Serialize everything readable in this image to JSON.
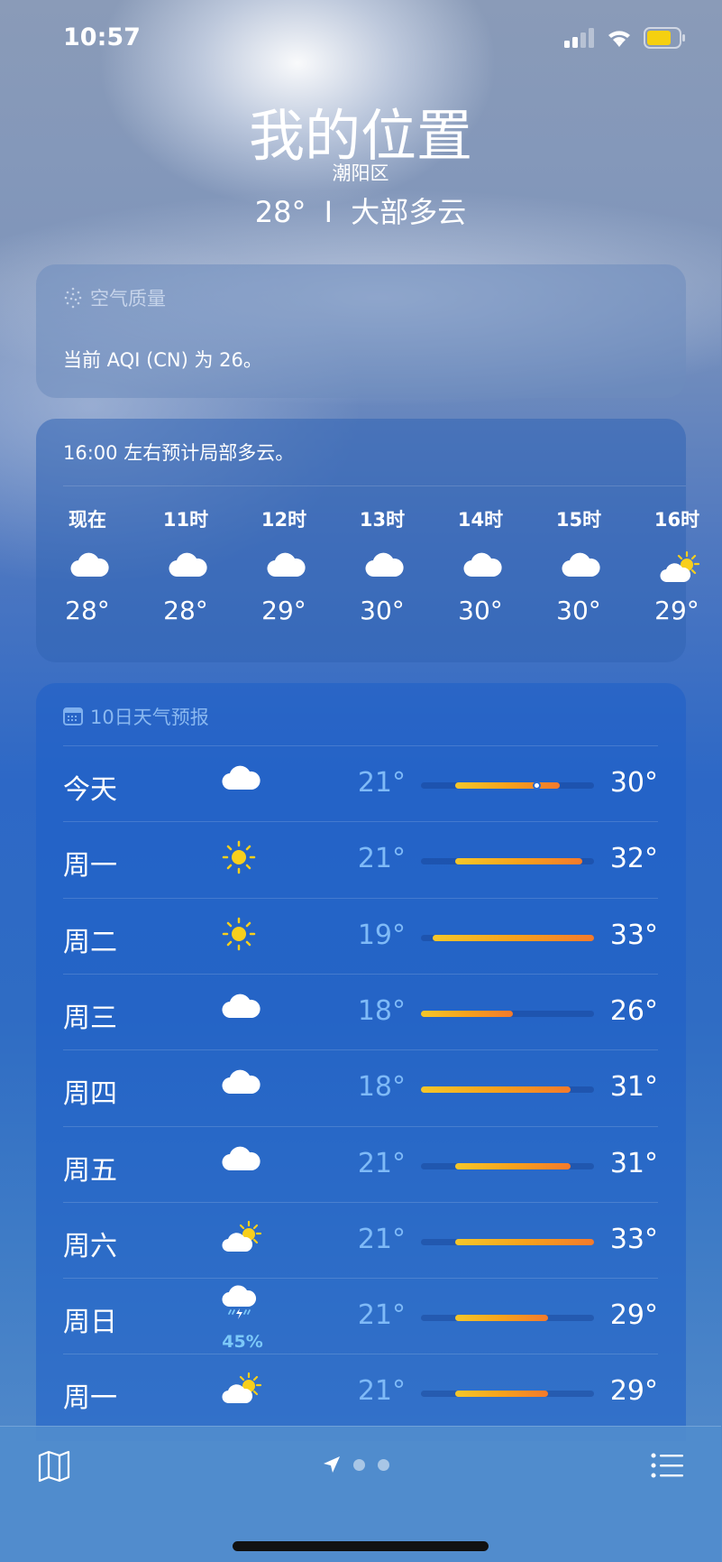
{
  "status": {
    "time": "10:57",
    "battery_color": "#f5d010"
  },
  "header": {
    "title": "我的位置",
    "district": "潮阳区",
    "temp": "28°",
    "separator": "I",
    "condition": "大部多云"
  },
  "aqi": {
    "icon": "aqi-dots-icon",
    "label": "空气质量",
    "text": "当前 AQI (CN) 为 26。"
  },
  "hourly": {
    "summary": "16:00 左右预计局部多云。",
    "items": [
      {
        "hour": "现在",
        "icon": "cloud",
        "temp": "28°"
      },
      {
        "hour": "11时",
        "icon": "cloud",
        "temp": "28°"
      },
      {
        "hour": "12时",
        "icon": "cloud",
        "temp": "29°"
      },
      {
        "hour": "13时",
        "icon": "cloud",
        "temp": "30°"
      },
      {
        "hour": "14时",
        "icon": "cloud",
        "temp": "30°"
      },
      {
        "hour": "15时",
        "icon": "cloud",
        "temp": "30°"
      },
      {
        "hour": "16时",
        "icon": "partly-sunny",
        "temp": "29°"
      }
    ]
  },
  "daily": {
    "icon": "calendar-icon",
    "label": "10日天气预报",
    "range_min": 18,
    "range_max": 33,
    "current_temp": 28,
    "items": [
      {
        "day": "今天",
        "icon": "cloud",
        "low": "21°",
        "high": "30°",
        "lo": 21,
        "hi": 30,
        "current": true
      },
      {
        "day": "周一",
        "icon": "sun",
        "low": "21°",
        "high": "32°",
        "lo": 21,
        "hi": 32
      },
      {
        "day": "周二",
        "icon": "sun",
        "low": "19°",
        "high": "33°",
        "lo": 19,
        "hi": 33
      },
      {
        "day": "周三",
        "icon": "cloud",
        "low": "18°",
        "high": "26°",
        "lo": 18,
        "hi": 26
      },
      {
        "day": "周四",
        "icon": "cloud",
        "low": "18°",
        "high": "31°",
        "lo": 18,
        "hi": 31
      },
      {
        "day": "周五",
        "icon": "cloud",
        "low": "21°",
        "high": "31°",
        "lo": 21,
        "hi": 31
      },
      {
        "day": "周六",
        "icon": "partly-sunny",
        "low": "21°",
        "high": "33°",
        "lo": 21,
        "hi": 33
      },
      {
        "day": "周日",
        "icon": "thunderstorm",
        "low": "21°",
        "high": "29°",
        "lo": 21,
        "hi": 29,
        "precip": "45%"
      },
      {
        "day": "周一",
        "icon": "partly-sunny",
        "low": "21°",
        "high": "29°",
        "lo": 21,
        "hi": 29
      }
    ]
  },
  "toolbar": {
    "left": "map-icon",
    "center": "location-arrow-icon",
    "right": "list-icon",
    "page_count": 3
  }
}
